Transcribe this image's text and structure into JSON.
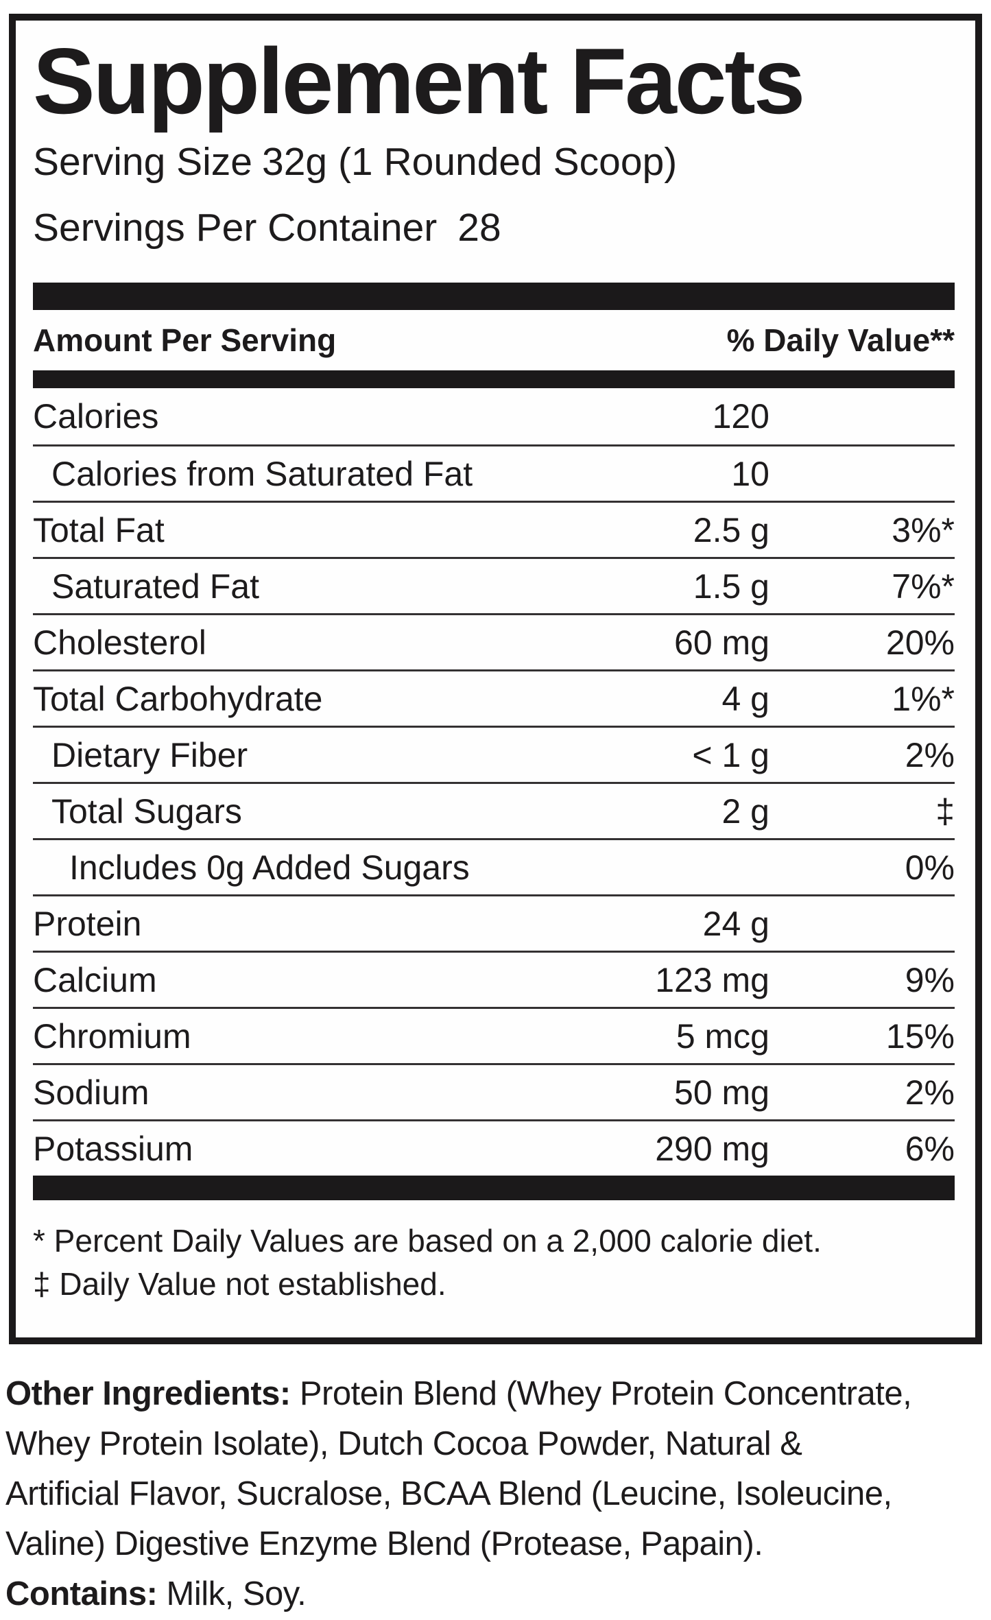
{
  "label": {
    "title": "Supplement Facts",
    "serving": {
      "serving_size_label": "Serving Size",
      "serving_size_value": "32g (1 Rounded Scoop)",
      "servings_label": "Servings Per Container",
      "servings_value": "28"
    },
    "table": {
      "amount_header": "Amount Per Serving",
      "dv_header": "% Daily Value**",
      "rows": [
        {
          "name": "Calories",
          "amount": "120",
          "dv": "",
          "indent": 0
        },
        {
          "name": "Calories from Saturated Fat",
          "amount": "10",
          "dv": "",
          "indent": 1
        },
        {
          "name": "Total Fat",
          "amount": "2.5 g",
          "dv": "3%*",
          "indent": 0
        },
        {
          "name": "Saturated Fat",
          "amount": "1.5 g",
          "dv": "7%*",
          "indent": 1
        },
        {
          "name": "Cholesterol",
          "amount": "60 mg",
          "dv": "20%",
          "indent": 0
        },
        {
          "name": "Total Carbohydrate",
          "amount": "4 g",
          "dv": "1%*",
          "indent": 0
        },
        {
          "name": "Dietary Fiber",
          "amount": "< 1 g",
          "dv": "2%",
          "indent": 1
        },
        {
          "name": "Total Sugars",
          "amount": "2 g",
          "dv": "‡",
          "indent": 1
        },
        {
          "name": "Includes 0g Added Sugars",
          "amount": "",
          "dv": "0%",
          "indent": 2
        },
        {
          "name": "Protein",
          "amount": "24 g",
          "dv": "",
          "indent": 0
        },
        {
          "name": "Calcium",
          "amount": "123 mg",
          "dv": "9%",
          "indent": 0
        },
        {
          "name": "Chromium",
          "amount": "5 mcg",
          "dv": "15%",
          "indent": 0
        },
        {
          "name": "Sodium",
          "amount": "50 mg",
          "dv": "2%",
          "indent": 0
        },
        {
          "name": "Potassium",
          "amount": "290 mg",
          "dv": "6%",
          "indent": 0
        }
      ]
    },
    "footnotes": {
      "percent_dv": "* Percent Daily Values are based on a 2,000 calorie diet.",
      "not_established": "‡ Daily Value not established."
    },
    "other_ingredients": {
      "lead": "Other Ingredients:",
      "text": " Protein Blend (Whey Protein Concentrate,\nWhey Protein Isolate), Dutch Cocoa Powder, Natural &\nArtificial Flavor, Sucralose, BCAA Blend (Leucine, Isoleucine,\nValine) Digestive Enzyme Blend (Protease, Papain)."
    },
    "contains": {
      "lead": "Contains:",
      "text": " Milk, Soy."
    },
    "colors": {
      "ink": "#1b191a",
      "separator": "#343132",
      "background": "#ffffff"
    }
  }
}
